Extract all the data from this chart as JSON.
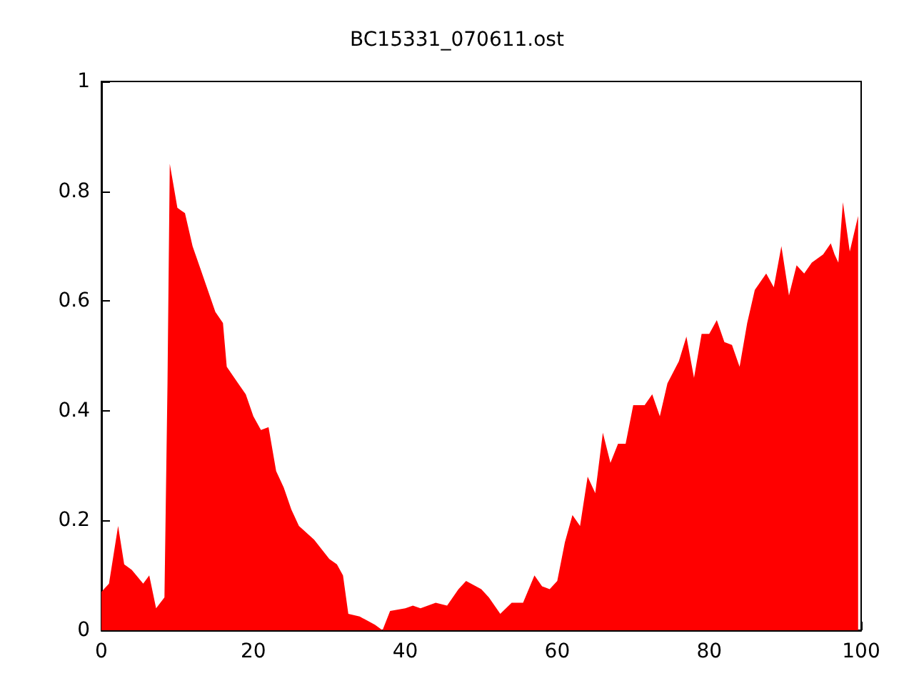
{
  "chart_data": {
    "type": "area",
    "title": "BC15331_070611.ost",
    "x": [
      0,
      1,
      2.2,
      3,
      4,
      5.5,
      6.3,
      7.2,
      8.3,
      8.7,
      9,
      10,
      11,
      12,
      13,
      14,
      15,
      16,
      16.5,
      18,
      19,
      20,
      21,
      22,
      23,
      24,
      25,
      26,
      28,
      30,
      31,
      31.8,
      32.5,
      34,
      36,
      37,
      38,
      40,
      41,
      42,
      44,
      45.5,
      47,
      48,
      50,
      51,
      52.5,
      54,
      55.5,
      57,
      58,
      59,
      60,
      61,
      62,
      63,
      64,
      65,
      66,
      67,
      68,
      69,
      70,
      71.5,
      72.5,
      73.5,
      74.5,
      76,
      77,
      78,
      79,
      80,
      81,
      82,
      83,
      84,
      85,
      86,
      87.5,
      88.5,
      89.5,
      90.5,
      91.5,
      92.5,
      93.5,
      95,
      96,
      96.5,
      97,
      97.6,
      98.5,
      99.6
    ],
    "series": [
      {
        "color": "#ff0000",
        "values": [
          0.07,
          0.085,
          0.19,
          0.12,
          0.11,
          0.085,
          0.1,
          0.04,
          0.06,
          0.45,
          0.85,
          0.77,
          0.76,
          0.7,
          0.66,
          0.62,
          0.58,
          0.56,
          0.48,
          0.45,
          0.43,
          0.39,
          0.365,
          0.37,
          0.29,
          0.26,
          0.22,
          0.19,
          0.165,
          0.13,
          0.12,
          0.1,
          0.03,
          0.025,
          0.01,
          0,
          0.035,
          0.04,
          0.045,
          0.04,
          0.05,
          0.045,
          0.075,
          0.09,
          0.075,
          0.06,
          0.03,
          0.05,
          0.05,
          0.1,
          0.08,
          0.075,
          0.09,
          0.16,
          0.21,
          0.19,
          0.28,
          0.25,
          0.36,
          0.305,
          0.34,
          0.34,
          0.41,
          0.41,
          0.43,
          0.39,
          0.45,
          0.49,
          0.535,
          0.46,
          0.54,
          0.54,
          0.565,
          0.525,
          0.52,
          0.48,
          0.56,
          0.62,
          0.65,
          0.625,
          0.7,
          0.61,
          0.665,
          0.65,
          0.67,
          0.685,
          0.705,
          0.685,
          0.67,
          0.78,
          0.69,
          0.755
        ]
      }
    ],
    "xlim": [
      0,
      100
    ],
    "xticks": [
      0,
      20,
      40,
      60,
      80,
      100
    ],
    "ylim": [
      0,
      1
    ],
    "yticks": [
      0,
      0.2,
      0.4,
      0.6,
      0.8,
      1
    ],
    "grid": false,
    "marker": "none"
  }
}
